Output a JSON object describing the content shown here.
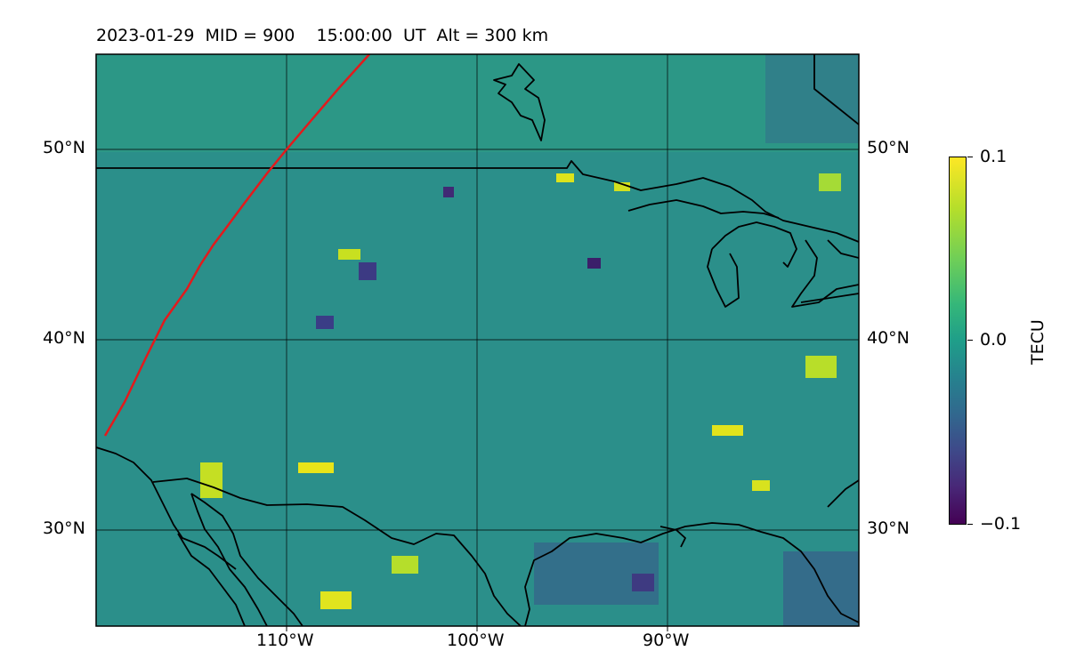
{
  "title": "2023-01-29  MID = 900    15:00:00  UT  Alt = 300 km",
  "lat_labels": [
    "50°N",
    "40°N",
    "30°N"
  ],
  "lon_labels": [
    "110°W",
    "100°W",
    "90°W"
  ],
  "colorbar": {
    "label": "TECU",
    "ticks": [
      "0.1",
      "0.0",
      "−0.1"
    ],
    "min": -0.1,
    "max": 0.1,
    "colormap": "viridis"
  },
  "map": {
    "extent_lon": [
      -120,
      -80
    ],
    "extent_lat": [
      25,
      55
    ],
    "gridlines": true,
    "boundaries": "coastlines, country borders, Great Lakes",
    "line_color": "#e31a1c"
  }
}
